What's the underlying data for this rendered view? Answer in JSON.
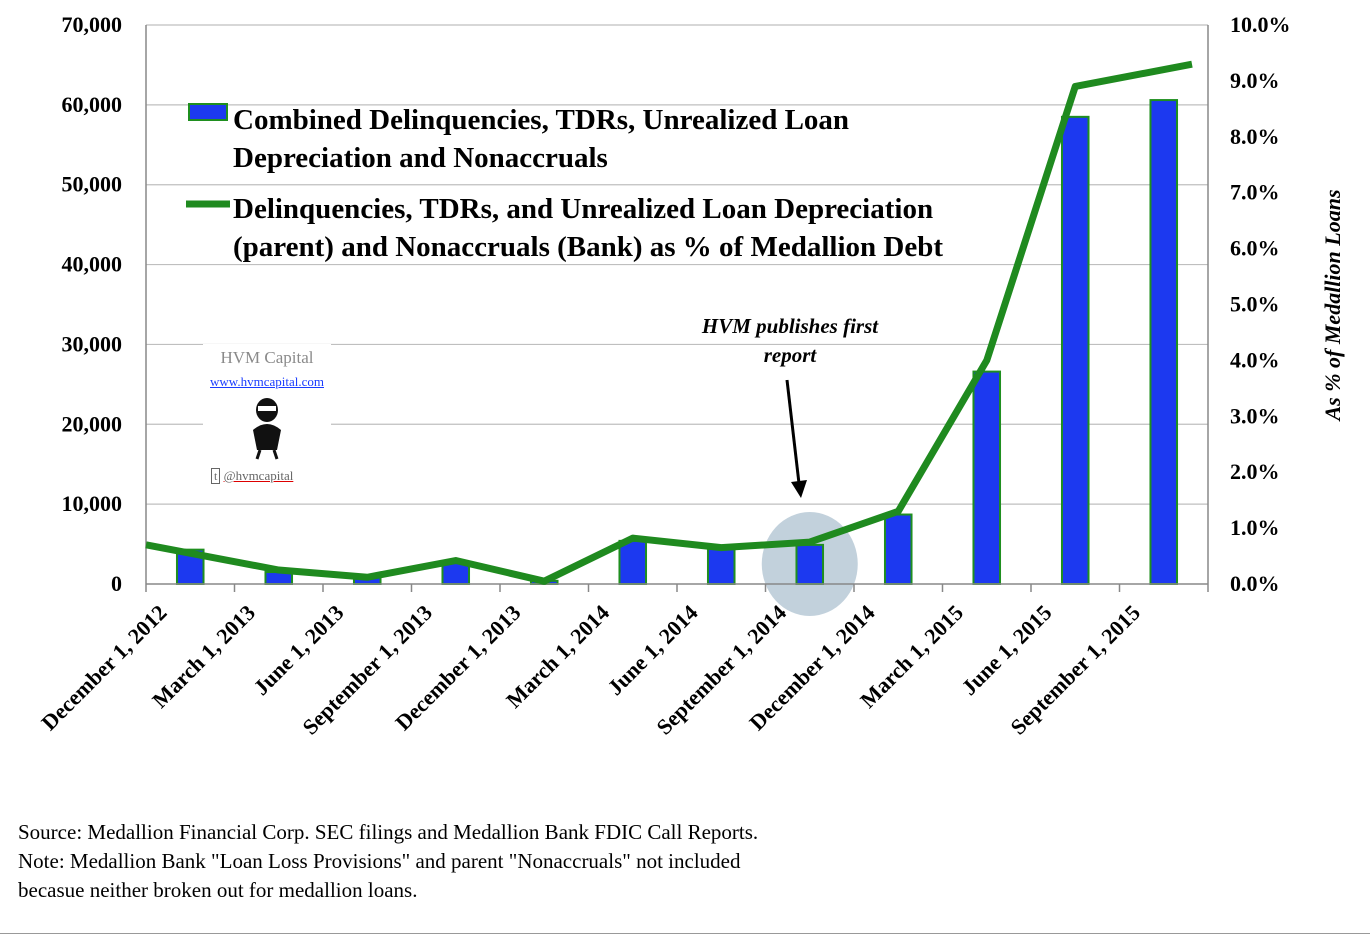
{
  "chart_data": {
    "type": "bar",
    "categories": [
      "December 1, 2012",
      "March 1, 2013",
      "June 1, 2013",
      "September 1, 2013",
      "December 1, 2013",
      "March 1, 2014",
      "June 1, 2014",
      "September 1, 2014",
      "December 1, 2014",
      "March 1, 2015",
      "June 1, 2015",
      "September 1, 2015"
    ],
    "series": [
      {
        "name": "Combined Delinquencies, TDRs, Unrealized Loan Depreciation and Nonaccruals",
        "type": "bar",
        "axis": "left",
        "values": [
          4300,
          1500,
          900,
          2700,
          400,
          5400,
          4400,
          4900,
          8700,
          26600,
          58500,
          60600
        ]
      },
      {
        "name": "Delinquencies, TDRs, and Unrealized Loan Depreciation (parent) and Nonaccruals (Bank) as % of Medallion Debt",
        "type": "line",
        "axis": "right",
        "values": [
          0.7,
          0.25,
          0.12,
          0.42,
          0.05,
          0.82,
          0.65,
          0.75,
          1.3,
          4.0,
          8.9,
          9.3
        ]
      }
    ],
    "legend_lines": [
      [
        "Combined Delinquencies, TDRs, Unrealized Loan",
        "Depreciation and Nonaccruals"
      ],
      [
        "Delinquencies, TDRs, and Unrealized Loan Depreciation",
        "(parent) and Nonaccruals (Bank) as % of Medallion Debt"
      ]
    ],
    "ylim": [
      0,
      70000
    ],
    "yticks": [
      0,
      10000,
      20000,
      30000,
      40000,
      50000,
      60000,
      70000
    ],
    "ytick_labels": [
      "0",
      "10,000",
      "20,000",
      "30,000",
      "40,000",
      "50,000",
      "60,000",
      "70,000"
    ],
    "y2lim": [
      0,
      10
    ],
    "y2ticks": [
      0,
      1,
      2,
      3,
      4,
      5,
      6,
      7,
      8,
      9,
      10
    ],
    "y2tick_labels": [
      "0.0%",
      "1.0%",
      "2.0%",
      "3.0%",
      "4.0%",
      "5.0%",
      "6.0%",
      "7.0%",
      "8.0%",
      "9.0%",
      "10.0%"
    ],
    "y2label": "As % of Medallion Loans",
    "grid": true,
    "legend_position": "top-left",
    "annotation": {
      "lines": [
        "HVM publishes first",
        "report"
      ],
      "target_category": "September 1, 2014"
    },
    "colors": {
      "bar": "#1c39f0",
      "bar_edge": "#1f8f1f",
      "line": "#1f8a1f",
      "grid": "#bfbfbf",
      "highlight": "#b7c9d6"
    }
  },
  "logo": {
    "name": "HVM Capital",
    "url": "www.hvmcapital.com",
    "handle": "@hvmcapital"
  },
  "footnotes": [
    "Source: Medallion Financial Corp. SEC filings and Medallion Bank FDIC Call Reports.",
    "Note: Medallion Bank \"Loan Loss Provisions\" and parent \"Nonaccruals\" not included",
    "becasue neither broken out for medallion loans."
  ]
}
